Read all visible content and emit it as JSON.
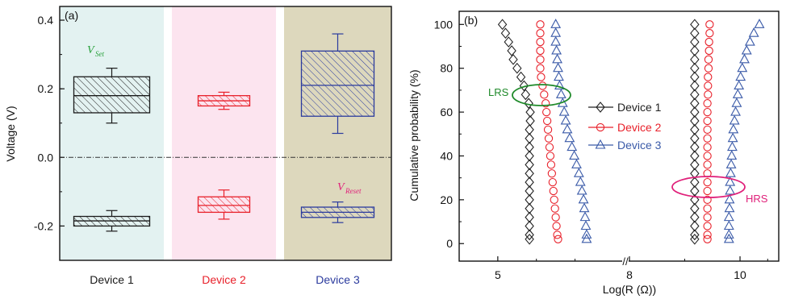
{
  "chart_data": [
    {
      "type": "box",
      "panel_label": "(a)",
      "ylabel": "Voltage (V)",
      "ylim": [
        -0.3,
        0.44
      ],
      "yticks": [
        "0.4",
        "0.2",
        "0.0",
        "-0.2"
      ],
      "ytick_values": [
        0.4,
        0.2,
        0.0,
        -0.2
      ],
      "categories": [
        "Device 1",
        "Device 2",
        "Device 3"
      ],
      "category_colors": [
        "#1a1a1a",
        "#e8202a",
        "#2b3b9e"
      ],
      "background_colors": [
        "#e3f2f1",
        "#fce4ef",
        "#ddd8bd"
      ],
      "reference_line": 0.0,
      "annotations": [
        {
          "text": "V",
          "sub": "Set",
          "color": "#27a03a"
        },
        {
          "text": "V",
          "sub": "Reset",
          "color": "#e0207a"
        }
      ],
      "series": [
        {
          "name": "V_Set",
          "boxes": [
            {
              "min": 0.1,
              "q1": 0.13,
              "median": 0.18,
              "q3": 0.235,
              "max": 0.26
            },
            {
              "min": 0.14,
              "q1": 0.15,
              "median": 0.165,
              "q3": 0.18,
              "max": 0.19
            },
            {
              "min": 0.07,
              "q1": 0.12,
              "median": 0.21,
              "q3": 0.31,
              "max": 0.36
            }
          ]
        },
        {
          "name": "V_Reset",
          "boxes": [
            {
              "min": -0.215,
              "q1": -0.2,
              "median": -0.185,
              "q3": -0.172,
              "max": -0.155
            },
            {
              "min": -0.18,
              "q1": -0.16,
              "median": -0.14,
              "q3": -0.115,
              "max": -0.095
            },
            {
              "min": -0.19,
              "q1": -0.175,
              "median": -0.16,
              "q3": -0.145,
              "max": -0.13
            }
          ]
        }
      ]
    },
    {
      "type": "scatter",
      "panel_label": "(b)",
      "xlabel": "Log(R (Ω))",
      "ylabel": "Cumulative probability (%)",
      "ylim": [
        -8,
        106
      ],
      "yticks": [
        "0",
        "20",
        "40",
        "60",
        "80",
        "100"
      ],
      "ytick_values": [
        0,
        20,
        40,
        60,
        80,
        100
      ],
      "xticks": [
        "5",
        "8",
        "10"
      ],
      "axis_break": "//",
      "ellipse_labels": [
        {
          "text": "LRS",
          "color": "#1f8a2a"
        },
        {
          "text": "HRS",
          "color": "#e0207a"
        }
      ],
      "legend": "inside-center",
      "series": [
        {
          "name": "Device 1",
          "marker": "diamond",
          "color": "#222222",
          "lrs_x": [
            5.06,
            5.1,
            5.14,
            5.18,
            5.2,
            5.25,
            5.3,
            5.34,
            5.36,
            5.4,
            5.42,
            5.42,
            5.41,
            5.41,
            5.41,
            5.41,
            5.41,
            5.41,
            5.41,
            5.41,
            5.41,
            5.41,
            5.41,
            5.41,
            5.41,
            5.41
          ],
          "hrs_x": [
            9.18,
            9.18,
            9.18,
            9.18,
            9.18,
            9.18,
            9.18,
            9.18,
            9.18,
            9.18,
            9.18,
            9.18,
            9.18,
            9.18,
            9.18,
            9.18,
            9.18,
            9.18,
            9.18,
            9.18,
            9.18,
            9.18,
            9.18,
            9.18,
            9.18,
            9.18
          ],
          "y": [
            100,
            96,
            92,
            88,
            84,
            80,
            76,
            72,
            68,
            64,
            60,
            56,
            52,
            48,
            44,
            40,
            36,
            32,
            28,
            24,
            20,
            16,
            12,
            8,
            4,
            2
          ]
        },
        {
          "name": "Device 2",
          "marker": "circle",
          "color": "#e8202a",
          "lrs_x": [
            5.55,
            5.55,
            5.55,
            5.55,
            5.55,
            5.55,
            5.56,
            5.58,
            5.6,
            5.62,
            5.63,
            5.64,
            5.65,
            5.66,
            5.67,
            5.68,
            5.69,
            5.7,
            5.71,
            5.72,
            5.73,
            5.74,
            5.75,
            5.76,
            5.77,
            5.78
          ],
          "hrs_x": [
            9.45,
            9.45,
            9.44,
            9.44,
            9.43,
            9.43,
            9.42,
            9.42,
            9.42,
            9.41,
            9.41,
            9.41,
            9.41,
            9.41,
            9.41,
            9.41,
            9.41,
            9.41,
            9.41,
            9.41,
            9.41,
            9.41,
            9.41,
            9.41,
            9.41,
            9.41
          ],
          "y": [
            100,
            96,
            92,
            88,
            84,
            80,
            76,
            72,
            68,
            64,
            60,
            56,
            52,
            48,
            44,
            40,
            36,
            32,
            28,
            24,
            20,
            16,
            12,
            8,
            4,
            2
          ]
        },
        {
          "name": "Device 3",
          "marker": "triangle",
          "color": "#3a5aa8",
          "lrs_x": [
            5.75,
            5.75,
            5.75,
            5.76,
            5.77,
            5.78,
            5.79,
            5.8,
            5.82,
            5.84,
            5.86,
            5.88,
            5.9,
            5.93,
            5.96,
            5.99,
            6.02,
            6.05,
            6.07,
            6.09,
            6.11,
            6.12,
            6.13,
            6.14,
            6.15,
            6.15
          ],
          "hrs_x": [
            10.35,
            10.25,
            10.18,
            10.12,
            10.08,
            10.04,
            10.01,
            9.98,
            9.96,
            9.94,
            9.92,
            9.9,
            9.88,
            9.87,
            9.86,
            9.85,
            9.84,
            9.83,
            9.82,
            9.82,
            9.81,
            9.81,
            9.8,
            9.8,
            9.8,
            9.8
          ],
          "y": [
            100,
            96,
            92,
            88,
            84,
            80,
            76,
            72,
            68,
            64,
            60,
            56,
            52,
            48,
            44,
            40,
            36,
            32,
            28,
            24,
            20,
            16,
            12,
            8,
            4,
            2
          ]
        }
      ]
    }
  ]
}
